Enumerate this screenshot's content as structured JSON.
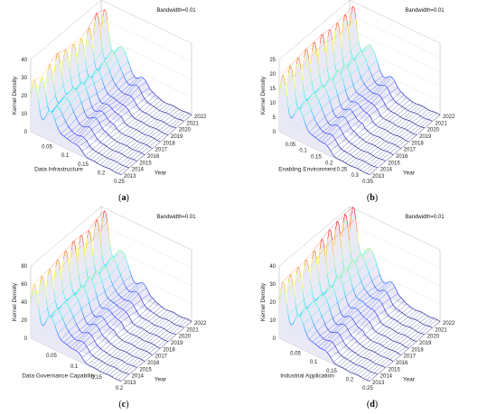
{
  "chart_data": [
    {
      "type": "surface",
      "panel_caption_letter": "a",
      "bandwidth_label": "Bandwidth=0.01",
      "xlabel": "Data Infrastructure",
      "ylabel": "Year",
      "zlabel": "Kernel Density",
      "x_ticks": [
        "0.05",
        "0.1",
        "0.15",
        "0.2",
        "0.25"
      ],
      "x_range": [
        0.0,
        0.25
      ],
      "years": [
        "2013",
        "2014",
        "2015",
        "2016",
        "2017",
        "2018",
        "2019",
        "2020",
        "2021",
        "2022"
      ],
      "z_ticks": [
        "0",
        "10",
        "20",
        "30",
        "40"
      ],
      "zlim": [
        0,
        40
      ],
      "peaks_by_year": [
        28,
        26,
        30,
        33,
        31,
        30,
        29,
        31,
        36,
        35
      ]
    },
    {
      "type": "surface",
      "panel_caption_letter": "b",
      "bandwidth_label": "Bandwidth=0.01",
      "xlabel": "Enabling Environment",
      "ylabel": "Year",
      "zlabel": "Kernel Density",
      "x_ticks": [
        "0.05",
        "0.1",
        "0.15",
        "0.2",
        "0.25",
        "0.3",
        "0.35"
      ],
      "x_range": [
        0.0,
        0.35
      ],
      "years": [
        "2013",
        "2014",
        "2015",
        "2016",
        "2017",
        "2018",
        "2019",
        "2020",
        "2021",
        "2022"
      ],
      "z_ticks": [
        "0",
        "5",
        "10",
        "15",
        "20",
        "25"
      ],
      "zlim": [
        0,
        25
      ],
      "peaks_by_year": [
        19,
        20,
        21,
        22,
        22,
        22,
        21,
        21,
        22,
        23
      ]
    },
    {
      "type": "surface",
      "panel_caption_letter": "c",
      "bandwidth_label": "Bandwidth=0.01",
      "xlabel": "Data Governance Capability",
      "ylabel": "Year",
      "zlabel": "Kernel Density",
      "x_ticks": [
        "0.05",
        "0.1",
        "0.15",
        "0.2"
      ],
      "x_range": [
        0.0,
        0.2
      ],
      "years": [
        "2013",
        "2014",
        "2015",
        "2016",
        "2017",
        "2018",
        "2019",
        "2020",
        "2021",
        "2022"
      ],
      "z_ticks": [
        "0",
        "20",
        "40",
        "60",
        "80"
      ],
      "zlim": [
        0,
        80
      ],
      "peaks_by_year": [
        58,
        60,
        62,
        66,
        68,
        70,
        68,
        66,
        72,
        76
      ]
    },
    {
      "type": "surface",
      "panel_caption_letter": "d",
      "bandwidth_label": "Bandwidth=0.01",
      "xlabel": "Industrial Application",
      "ylabel": "Year",
      "zlabel": "Kernel Density",
      "x_ticks": [
        "0.05",
        "0.1",
        "0.15",
        "0.2",
        "0.25"
      ],
      "x_range": [
        0.0,
        0.25
      ],
      "years": [
        "2013",
        "2014",
        "2015",
        "2016",
        "2017",
        "2018",
        "2019",
        "2020",
        "2021",
        "2022"
      ],
      "z_ticks": [
        "0",
        "10",
        "20",
        "30",
        "40"
      ],
      "zlim": [
        0,
        40
      ],
      "peaks_by_year": [
        30,
        31,
        32,
        33,
        34,
        36,
        37,
        38,
        39,
        40
      ]
    }
  ]
}
